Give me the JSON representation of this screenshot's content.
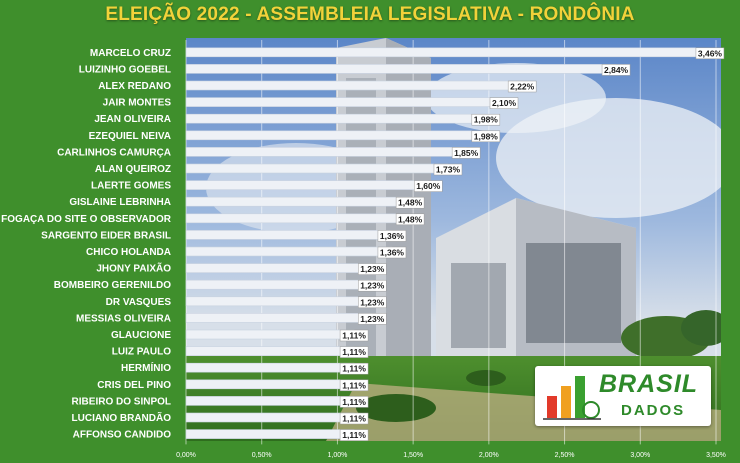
{
  "chart_data": {
    "type": "bar",
    "orientation": "horizontal",
    "title": "ELEIÇÃO 2022 - ASSEMBLEIA LEGISLATIVA - RONDÔNIA",
    "categories": [
      "MARCELO CRUZ",
      "LUIZINHO GOEBEL",
      "ALEX REDANO",
      "JAIR MONTES",
      "JEAN OLIVEIRA",
      "EZEQUIEL NEIVA",
      "CARLINHOS CAMURÇA",
      "ALAN QUEIROZ",
      "LAERTE GOMES",
      "GISLAINE LEBRINHA",
      "FOGAÇA DO SITE O OBSERVADOR",
      "SARGENTO EIDER BRASIL",
      "CHICO HOLANDA",
      "JHONY PAIXÃO",
      "BOMBEIRO GERENILDO",
      "DR VASQUES",
      "MESSIAS OLIVEIRA",
      "GLAUCIONE",
      "LUIZ PAULO",
      "HERMÍNIO",
      "CRIS DEL PINO",
      "RIBEIRO DO SINPOL",
      "LUCIANO BRANDÃO",
      "AFFONSO CANDIDO"
    ],
    "values": [
      3.46,
      2.84,
      2.22,
      2.1,
      1.98,
      1.98,
      1.85,
      1.73,
      1.6,
      1.48,
      1.48,
      1.36,
      1.36,
      1.23,
      1.23,
      1.23,
      1.23,
      1.11,
      1.11,
      1.11,
      1.11,
      1.11,
      1.11,
      1.11
    ],
    "data_labels": [
      "3,46%",
      "2,84%",
      "2,22%",
      "2,10%",
      "1,98%",
      "1,98%",
      "1,85%",
      "1,73%",
      "1,60%",
      "1,48%",
      "1,48%",
      "1,36%",
      "1,36%",
      "1,23%",
      "1,23%",
      "1,23%",
      "1,23%",
      "1,11%",
      "1,11%",
      "1,11%",
      "1,11%",
      "1,11%",
      "1,11%",
      "1,11%"
    ],
    "x_ticks": [
      0,
      0.5,
      1.0,
      1.5,
      2.0,
      2.5,
      3.0,
      3.5
    ],
    "x_tick_labels": [
      "0,00%",
      "0,50%",
      "1,00%",
      "1,50%",
      "2,00%",
      "2,50%",
      "3,00%",
      "3,50%"
    ],
    "xlim": [
      0,
      3.5
    ],
    "xlabel": "",
    "ylabel": "",
    "grid": "vertical",
    "colors": {
      "bar": "#eef1f6",
      "bar_edge": "#c9d2e0",
      "label_text": "#1a1a1a",
      "category_text": "#ffffff",
      "tick_text": "#ffffff",
      "title": "#f2d23a",
      "background": "#3f8f2c"
    }
  },
  "logo": {
    "brand": "BRASIL",
    "subtitle": "DADOS"
  }
}
